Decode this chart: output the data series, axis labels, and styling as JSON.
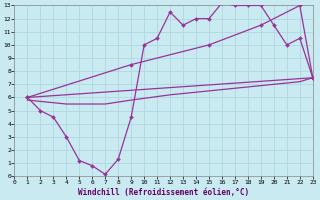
{
  "xlabel": "Windchill (Refroidissement éolien,°C)",
  "background_color": "#c8eaf0",
  "grid_color": "#b0d8e0",
  "line_color": "#993399",
  "xlim": [
    0,
    23
  ],
  "ylim": [
    0,
    13
  ],
  "xticks": [
    0,
    1,
    2,
    3,
    4,
    5,
    6,
    7,
    8,
    9,
    10,
    11,
    12,
    13,
    14,
    15,
    16,
    17,
    18,
    19,
    20,
    21,
    22,
    23
  ],
  "yticks": [
    0,
    1,
    2,
    3,
    4,
    5,
    6,
    7,
    8,
    9,
    10,
    11,
    12,
    13
  ],
  "series1_x": [
    1,
    2,
    3,
    4,
    5,
    6,
    7,
    8,
    9,
    10,
    11,
    12,
    13,
    14,
    15,
    16,
    17,
    18,
    19,
    20,
    21,
    22,
    23
  ],
  "series1_y": [
    6.0,
    5.0,
    4.5,
    3.0,
    1.2,
    0.8,
    0.15,
    1.3,
    4.5,
    10.0,
    10.5,
    12.5,
    11.5,
    12.0,
    12.0,
    13.2,
    13.0,
    13.0,
    13.0,
    11.5,
    10.0,
    10.5,
    7.5
  ],
  "series2_x": [
    1,
    9,
    15,
    19,
    22,
    23
  ],
  "series2_y": [
    6.0,
    8.5,
    10.0,
    11.5,
    13.0,
    7.5
  ],
  "series3_x": [
    1,
    23
  ],
  "series3_y": [
    6.0,
    7.5
  ],
  "series4_x": [
    1,
    4,
    7,
    9,
    12,
    14,
    16,
    18,
    19,
    20,
    22,
    23
  ],
  "series4_y": [
    5.8,
    5.5,
    5.5,
    5.8,
    6.2,
    6.4,
    6.6,
    6.8,
    6.9,
    7.0,
    7.2,
    7.5
  ]
}
